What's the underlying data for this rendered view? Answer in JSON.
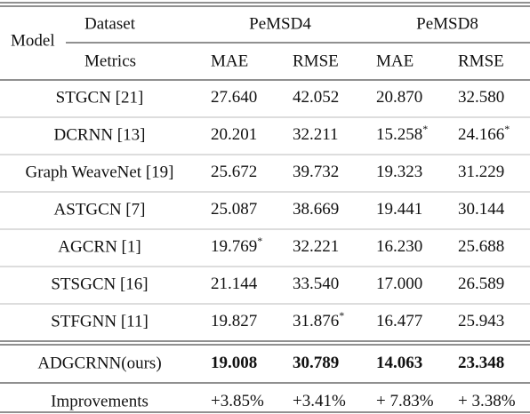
{
  "header": {
    "model": "Model",
    "dataset": "Dataset",
    "metrics": "Metrics",
    "datasets": [
      "PeMSD4",
      "PeMSD8"
    ],
    "metric_names": [
      "MAE",
      "RMSE",
      "MAE",
      "RMSE"
    ]
  },
  "rows": [
    {
      "model": "STGCN [21]",
      "cells": [
        {
          "text": "27.640"
        },
        {
          "text": "42.052"
        },
        {
          "text": "20.870"
        },
        {
          "text": "32.580"
        }
      ]
    },
    {
      "model": "DCRNN [13]",
      "cells": [
        {
          "text": "20.201"
        },
        {
          "text": "32.211"
        },
        {
          "text": "15.258",
          "sup": "*"
        },
        {
          "text": "24.166",
          "sup": "*"
        }
      ]
    },
    {
      "model": "Graph WeaveNet [19]",
      "cells": [
        {
          "text": "25.672"
        },
        {
          "text": "39.732"
        },
        {
          "text": "19.323"
        },
        {
          "text": "31.229"
        }
      ]
    },
    {
      "model": "ASTGCN [7]",
      "cells": [
        {
          "text": "25.087"
        },
        {
          "text": "38.669"
        },
        {
          "text": "19.441"
        },
        {
          "text": "30.144"
        }
      ]
    },
    {
      "model": "AGCRN [1]",
      "cells": [
        {
          "text": "19.769",
          "sup": "*"
        },
        {
          "text": "32.221"
        },
        {
          "text": "16.230"
        },
        {
          "text": "25.688"
        }
      ]
    },
    {
      "model": "STSGCN [16]",
      "cells": [
        {
          "text": "21.144"
        },
        {
          "text": "33.540"
        },
        {
          "text": "17.000"
        },
        {
          "text": "26.589"
        }
      ]
    },
    {
      "model": "STFGNN [11]",
      "cells": [
        {
          "text": "19.827"
        },
        {
          "text": "31.876",
          "sup": "*"
        },
        {
          "text": "16.477"
        },
        {
          "text": "25.943"
        }
      ]
    }
  ],
  "ours": {
    "model": "ADGCRNN(ours)",
    "cells": [
      {
        "text": "19.008"
      },
      {
        "text": "30.789"
      },
      {
        "text": "14.063"
      },
      {
        "text": "23.348"
      }
    ]
  },
  "improvements": {
    "model": "Improvements",
    "cells": [
      {
        "text": "+3.85%"
      },
      {
        "text": "+3.41%"
      },
      {
        "text": "+ 7.83%"
      },
      {
        "text": "+ 3.38%"
      }
    ]
  }
}
